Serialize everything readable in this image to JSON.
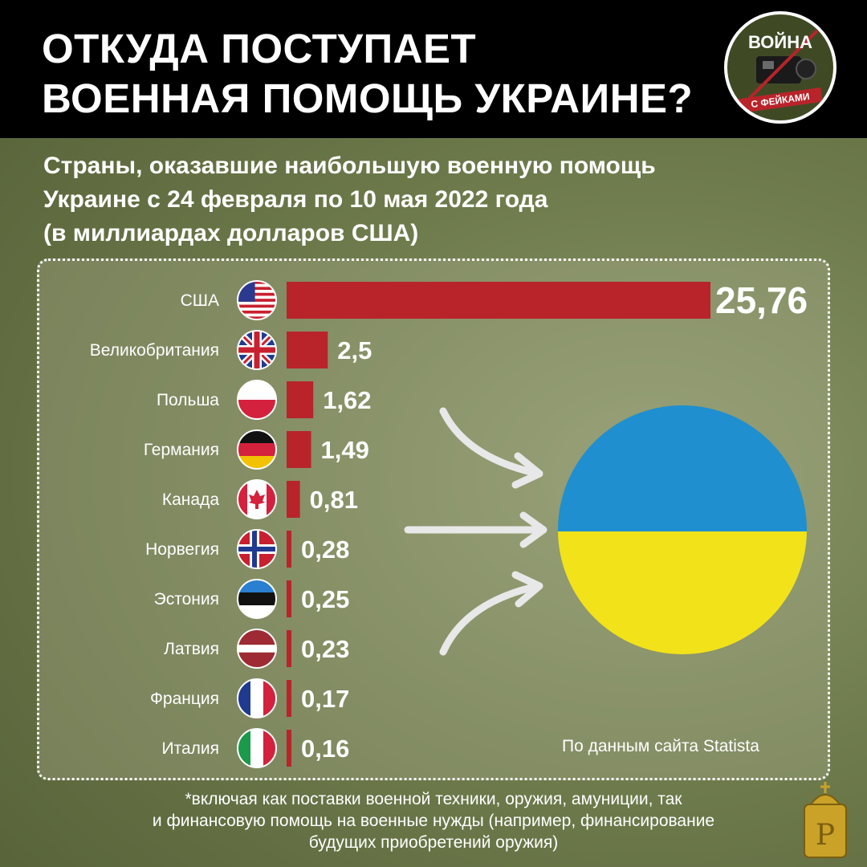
{
  "header": {
    "title_lines": [
      "ОТКУДА ПОСТУПАЕТ",
      "ВОЕННАЯ ПОМОЩЬ УКРАИНЕ?"
    ]
  },
  "logo": {
    "top_text": "ВОЙНА",
    "bottom_text": "С ФЕЙКАМИ"
  },
  "subtitle_lines": [
    "Страны, оказавшие наибольшую военную помощь",
    "Украине с 24 февраля по 10 мая 2022 года",
    "(в миллиардах долларов США)"
  ],
  "source": "По данным сайта Statista",
  "footnote_lines": [
    "*включая как поставки военной техники, оружия, амуниции, так",
    "и финансовую помощь на военные нужды (например, финансирование",
    "будущих приобретений оружия)"
  ],
  "colors": {
    "bar": "#b8242a",
    "ukraine_blue": "#1f8fd0",
    "ukraine_yellow": "#f2e21a"
  },
  "chart_data": {
    "type": "bar",
    "orientation": "horizontal",
    "categories": [
      "США",
      "Великобритания",
      "Польша",
      "Германия",
      "Канада",
      "Норвегия",
      "Эстония",
      "Латвия",
      "Франция",
      "Италия"
    ],
    "values": [
      25.76,
      2.5,
      1.62,
      1.49,
      0.81,
      0.28,
      0.25,
      0.23,
      0.17,
      0.16
    ],
    "value_labels": [
      "25,76",
      "2,5",
      "1,62",
      "1,49",
      "0,81",
      "0,28",
      "0,25",
      "0,23",
      "0,17",
      "0,16"
    ],
    "flags": [
      "us-flag-icon",
      "uk-flag-icon",
      "poland-flag-icon",
      "germany-flag-icon",
      "canada-flag-icon",
      "norway-flag-icon",
      "estonia-flag-icon",
      "latvia-flag-icon",
      "france-flag-icon",
      "italy-flag-icon"
    ],
    "grid": false
  }
}
